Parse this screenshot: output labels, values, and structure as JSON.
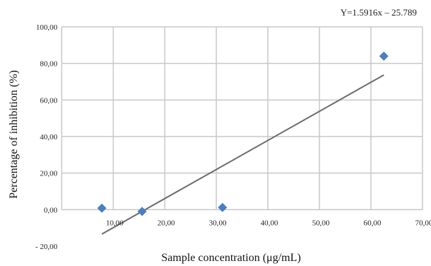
{
  "chart_data": {
    "type": "scatter",
    "xlabel": "Sample concentration (μg/mL)",
    "ylabel": "Percentage of inhibition (%)",
    "xlim": [
      0,
      70
    ],
    "ylim": [
      -20,
      100
    ],
    "x_ticks": [
      {
        "value": 10,
        "label": "10,00"
      },
      {
        "value": 20,
        "label": "20,00"
      },
      {
        "value": 30,
        "label": "30,00"
      },
      {
        "value": 40,
        "label": "40,00"
      },
      {
        "value": 50,
        "label": "50,00"
      },
      {
        "value": 60,
        "label": "60,00"
      },
      {
        "value": 70,
        "label": "70,00"
      }
    ],
    "y_ticks": [
      {
        "value": -20,
        "label": "- 20,00"
      },
      {
        "value": 0,
        "label": "0,00"
      },
      {
        "value": 20,
        "label": "20,00"
      },
      {
        "value": 40,
        "label": "40,00"
      },
      {
        "value": 60,
        "label": "60,00"
      },
      {
        "value": 80,
        "label": "80,00"
      },
      {
        "value": 100,
        "label": "100,00"
      }
    ],
    "grid": true,
    "points": [
      {
        "x": 7.8,
        "y": 0.8
      },
      {
        "x": 15.6,
        "y": -1.0
      },
      {
        "x": 31.2,
        "y": 1.2
      },
      {
        "x": 62.5,
        "y": 84.0
      }
    ],
    "trendline": {
      "x_range": [
        7.8,
        62.5
      ],
      "slope": 1.5916,
      "intercept": -25.789,
      "equation": "Y=1.5916x – 25.789"
    },
    "colors": {
      "marker": "#4a7fc1",
      "trendline": "#6b6b6b",
      "grid": "#c8c8c8"
    }
  }
}
